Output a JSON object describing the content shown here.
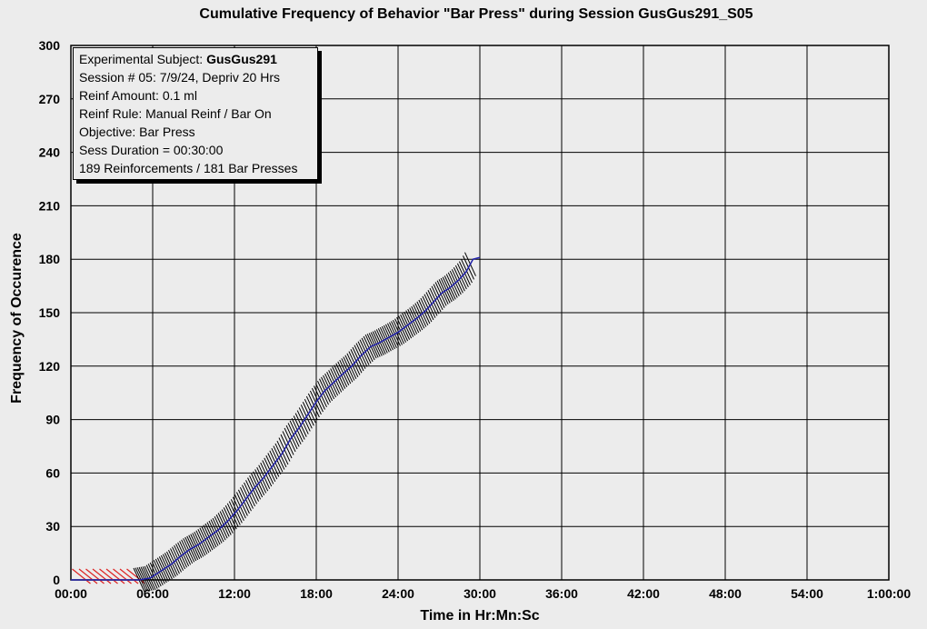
{
  "chart_data": {
    "type": "line",
    "title": "Cumulative Frequency of Behavior \"Bar Press\" during Session GusGus291_S05",
    "xlabel": "Time in Hr:Mn:Sc",
    "ylabel": "Frequency of Occurence",
    "x_unit": "minutes",
    "xlim": [
      0,
      60
    ],
    "ylim": [
      0,
      300
    ],
    "grid": true,
    "x_ticks": [
      0,
      6,
      12,
      18,
      24,
      30,
      36,
      42,
      48,
      54,
      60
    ],
    "x_tick_labels": [
      "00:00",
      "06:00",
      "12:00",
      "18:00",
      "24:00",
      "30:00",
      "36:00",
      "42:00",
      "48:00",
      "54:00",
      "1:00:00"
    ],
    "y_ticks": [
      0,
      30,
      60,
      90,
      120,
      150,
      180,
      210,
      240,
      270,
      300
    ],
    "y_tick_labels": [
      "0",
      "30",
      "60",
      "90",
      "120",
      "150",
      "180",
      "210",
      "240",
      "270",
      "300"
    ],
    "series": [
      {
        "color": "#2222aa",
        "x": [
          0,
          4.8,
          5.0,
          5.8,
          6.6,
          7.4,
          8.0,
          8.7,
          9.4,
          10.1,
          10.8,
          11.5,
          12.2,
          12.8,
          13.4,
          14.1,
          14.8,
          15.5,
          16.1,
          16.8,
          17.4,
          18.0,
          18.6,
          19.3,
          20.0,
          20.6,
          21.3,
          22.0,
          22.6,
          23.3,
          24.0,
          24.7,
          25.4,
          26.0,
          26.6,
          27.2,
          27.8,
          28.4,
          29.0,
          29.5,
          30.0
        ],
        "y": [
          0,
          0,
          0,
          1,
          5,
          9,
          13,
          17,
          20,
          24,
          28,
          33,
          39,
          45,
          51,
          57,
          64,
          71,
          79,
          86,
          93,
          100,
          106,
          111,
          116,
          120,
          126,
          131,
          133,
          136,
          139,
          143,
          147,
          151,
          156,
          161,
          164,
          168,
          173,
          180,
          181
        ]
      }
    ],
    "reinforcement_marks_x": [
      0.1,
      0.6,
      1.1,
      1.6,
      2.1,
      2.6,
      3.1,
      3.6,
      4.1
    ]
  },
  "info_box": {
    "line1_label": "Experimental Subject: ",
    "line1_value": "GusGus291",
    "line2": "Session # 05: 7/9/24, Depriv 20 Hrs",
    "line3": "Reinf Amount: 0.1 ml",
    "line4": "Reinf Rule: Manual Reinf / Bar On",
    "line5": "Objective: Bar Press",
    "line6": "Sess Duration = 00:30:00",
    "line7": "189 Reinforcements / 181 Bar Presses"
  },
  "colors": {
    "background": "#ececec",
    "grid": "#000000",
    "line": "#2222aa",
    "press_marks": "#000000",
    "reinforcement_marks": "#dd2222"
  }
}
